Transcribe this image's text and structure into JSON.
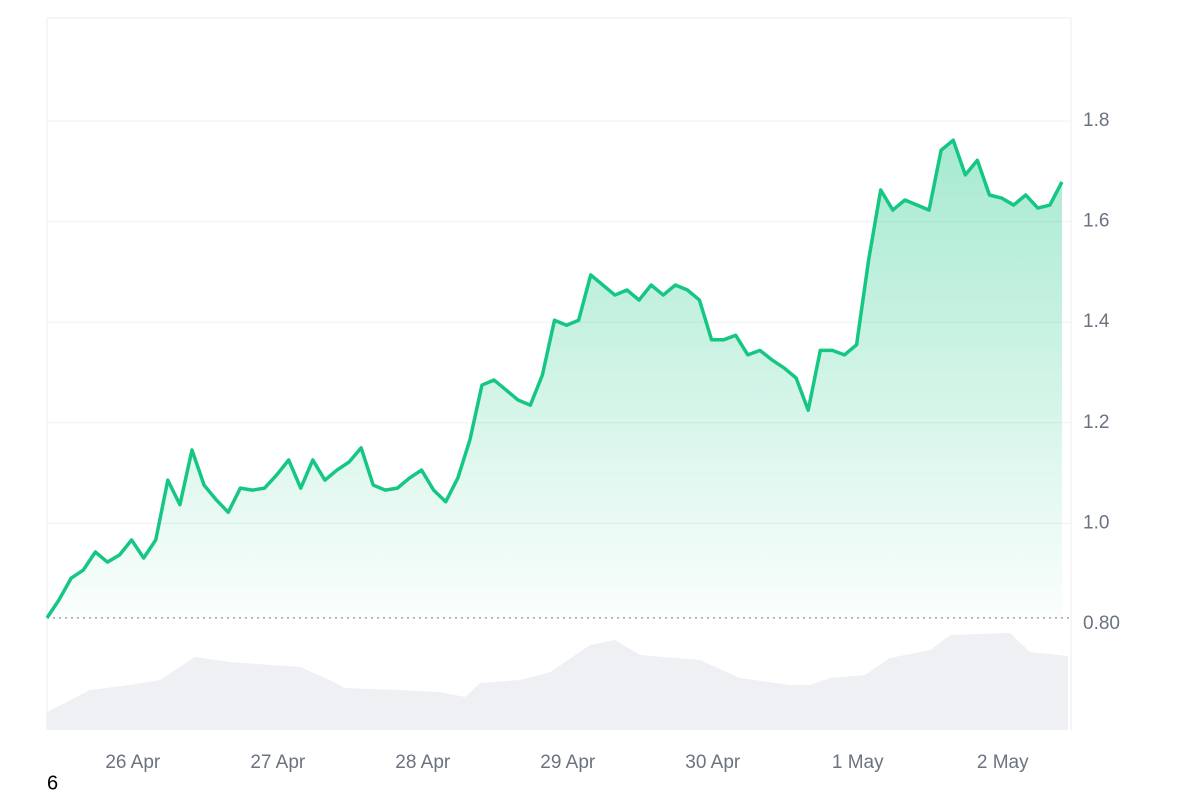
{
  "chart_data": {
    "type": "line",
    "x": [
      0,
      2,
      4,
      6,
      8,
      10,
      12,
      14,
      16,
      18,
      20,
      22,
      24,
      26,
      28,
      30,
      32,
      34,
      36,
      38,
      40,
      42,
      44,
      46,
      48,
      50,
      52,
      54,
      56,
      58,
      60,
      62,
      64,
      66,
      68,
      70,
      72,
      74,
      76,
      78,
      80,
      82,
      84,
      86,
      88,
      90,
      92,
      94,
      96,
      98,
      100,
      102,
      104,
      106,
      108,
      110,
      112,
      114,
      116,
      118,
      120,
      122,
      124,
      126,
      128,
      130,
      132,
      134,
      136,
      138,
      140,
      142,
      144,
      146,
      148,
      150,
      152,
      154,
      156,
      158,
      160,
      162,
      164,
      166,
      168
    ],
    "series": [
      {
        "color": "#16c784",
        "values": [
          0.812,
          0.848,
          0.891,
          0.907,
          0.943,
          0.923,
          0.937,
          0.967,
          0.931,
          0.967,
          1.086,
          1.037,
          1.146,
          1.076,
          1.047,
          1.022,
          1.07,
          1.066,
          1.07,
          1.096,
          1.126,
          1.07,
          1.126,
          1.086,
          1.106,
          1.122,
          1.15,
          1.076,
          1.066,
          1.07,
          1.09,
          1.106,
          1.066,
          1.043,
          1.09,
          1.166,
          1.275,
          1.285,
          1.265,
          1.245,
          1.235,
          1.295,
          1.404,
          1.394,
          1.404,
          1.494,
          1.474,
          1.454,
          1.464,
          1.444,
          1.474,
          1.454,
          1.474,
          1.464,
          1.444,
          1.365,
          1.365,
          1.374,
          1.335,
          1.344,
          1.325,
          1.309,
          1.289,
          1.225,
          1.344,
          1.344,
          1.335,
          1.355,
          1.524,
          1.663,
          1.623,
          1.643,
          1.633,
          1.623,
          1.742,
          1.762,
          1.693,
          1.722,
          1.653,
          1.647,
          1.633,
          1.653,
          1.627,
          1.633,
          1.679
        ]
      }
    ],
    "xlim": [
      0,
      169
    ],
    "xticks": [
      {
        "value": 14.2,
        "label": "26 Apr"
      },
      {
        "value": 38.2,
        "label": "27 Apr"
      },
      {
        "value": 62.2,
        "label": "28 Apr"
      },
      {
        "value": 86.2,
        "label": "29 Apr"
      },
      {
        "value": 110.2,
        "label": "30 Apr"
      },
      {
        "value": 134.2,
        "label": "1 May"
      },
      {
        "value": 158.2,
        "label": "2 May"
      }
    ],
    "ylim": [
      0.589,
      2.005
    ],
    "yticks": [
      {
        "value": 0.8,
        "label": "0.80"
      },
      {
        "value": 1,
        "label": "1.0"
      },
      1.2,
      1.4,
      1.6,
      1.8
    ],
    "grid": true,
    "volume": {
      "color": "#eef0f3",
      "ylim": [
        0,
        100
      ],
      "x": [
        0,
        7.1,
        13.7,
        18.7,
        24.5,
        30.3,
        41.9,
        46.8,
        49.3,
        58.4,
        65,
        69.2,
        71.7,
        78.3,
        83.3,
        89.9,
        94,
        98.2,
        108.1,
        114.7,
        123,
        126.3,
        129.6,
        135.4,
        139.5,
        146.2,
        149.5,
        159.4,
        162.7,
        169
      ],
      "values": [
        18,
        40,
        45,
        50,
        73,
        68,
        63,
        50,
        42,
        40,
        38,
        33,
        47,
        50,
        58,
        85,
        90,
        75,
        70,
        52,
        45,
        45,
        52,
        55,
        72,
        80,
        95,
        97,
        78,
        74
      ]
    },
    "footnote": "6"
  }
}
